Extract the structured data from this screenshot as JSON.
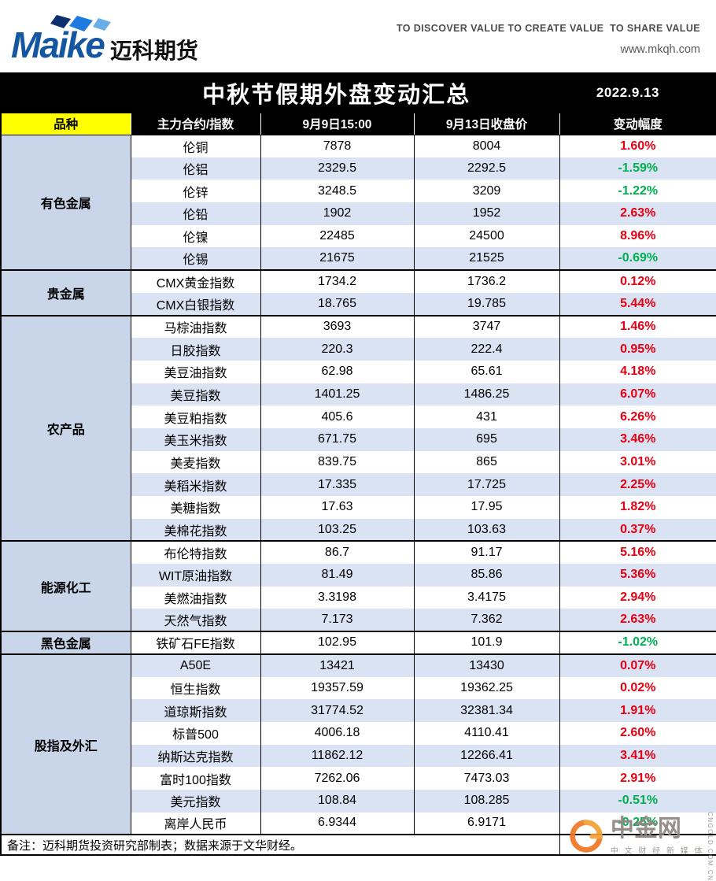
{
  "header": {
    "logo_en": "Maike",
    "logo_cn": "迈科期货",
    "tagline": "TO DISCOVER VALUE TO CREATE VALUE  TO SHARE VALUE",
    "website": "www.mkqh.com"
  },
  "title_bar": {
    "title": "中秋节假期外盘变动汇总",
    "date": "2022.9.13"
  },
  "table": {
    "headers": [
      "品种",
      "主力合约/指数",
      "9月9日15:00",
      "9月13日收盘价",
      "变动幅度"
    ],
    "groups": [
      {
        "category": "有色金属",
        "rows": [
          {
            "name": "伦铜",
            "prev": "7878",
            "close": "8004",
            "change": "1.60%",
            "dir": "up"
          },
          {
            "name": "伦铝",
            "prev": "2329.5",
            "close": "2292.5",
            "change": "-1.59%",
            "dir": "down"
          },
          {
            "name": "伦锌",
            "prev": "3248.5",
            "close": "3209",
            "change": "-1.22%",
            "dir": "down"
          },
          {
            "name": "伦铅",
            "prev": "1902",
            "close": "1952",
            "change": "2.63%",
            "dir": "up"
          },
          {
            "name": "伦镍",
            "prev": "22485",
            "close": "24500",
            "change": "8.96%",
            "dir": "up"
          },
          {
            "name": "伦锡",
            "prev": "21675",
            "close": "21525",
            "change": "-0.69%",
            "dir": "down"
          }
        ]
      },
      {
        "category": "贵金属",
        "rows": [
          {
            "name": "CMX黄金指数",
            "prev": "1734.2",
            "close": "1736.2",
            "change": "0.12%",
            "dir": "up"
          },
          {
            "name": "CMX白银指数",
            "prev": "18.765",
            "close": "19.785",
            "change": "5.44%",
            "dir": "up"
          }
        ]
      },
      {
        "category": "农产品",
        "rows": [
          {
            "name": "马棕油指数",
            "prev": "3693",
            "close": "3747",
            "change": "1.46%",
            "dir": "up"
          },
          {
            "name": "日胶指数",
            "prev": "220.3",
            "close": "222.4",
            "change": "0.95%",
            "dir": "up"
          },
          {
            "name": "美豆油指数",
            "prev": "62.98",
            "close": "65.61",
            "change": "4.18%",
            "dir": "up"
          },
          {
            "name": "美豆指数",
            "prev": "1401.25",
            "close": "1486.25",
            "change": "6.07%",
            "dir": "up"
          },
          {
            "name": "美豆粕指数",
            "prev": "405.6",
            "close": "431",
            "change": "6.26%",
            "dir": "up"
          },
          {
            "name": "美玉米指数",
            "prev": "671.75",
            "close": "695",
            "change": "3.46%",
            "dir": "up"
          },
          {
            "name": "美麦指数",
            "prev": "839.75",
            "close": "865",
            "change": "3.01%",
            "dir": "up"
          },
          {
            "name": "美稻米指数",
            "prev": "17.335",
            "close": "17.725",
            "change": "2.25%",
            "dir": "up"
          },
          {
            "name": "美糖指数",
            "prev": "17.63",
            "close": "17.95",
            "change": "1.82%",
            "dir": "up"
          },
          {
            "name": "美棉花指数",
            "prev": "103.25",
            "close": "103.63",
            "change": "0.37%",
            "dir": "up"
          }
        ]
      },
      {
        "category": "能源化工",
        "rows": [
          {
            "name": "布伦特指数",
            "prev": "86.7",
            "close": "91.17",
            "change": "5.16%",
            "dir": "up"
          },
          {
            "name": "WIT原油指数",
            "prev": "81.49",
            "close": "85.86",
            "change": "5.36%",
            "dir": "up"
          },
          {
            "name": "美燃油指数",
            "prev": "3.3198",
            "close": "3.4175",
            "change": "2.94%",
            "dir": "up"
          },
          {
            "name": "天然气指数",
            "prev": "7.173",
            "close": "7.362",
            "change": "2.63%",
            "dir": "up"
          }
        ]
      },
      {
        "category": "黑色金属",
        "rows": [
          {
            "name": "铁矿石FE指数",
            "prev": "102.95",
            "close": "101.9",
            "change": "-1.02%",
            "dir": "down"
          }
        ]
      },
      {
        "category": "股指及外汇",
        "rows": [
          {
            "name": "A50E",
            "prev": "13421",
            "close": "13430",
            "change": "0.07%",
            "dir": "up"
          },
          {
            "name": "恒生指数",
            "prev": "19357.59",
            "close": "19362.25",
            "change": "0.02%",
            "dir": "up"
          },
          {
            "name": "道琼斯指数",
            "prev": "31774.52",
            "close": "32381.34",
            "change": "1.91%",
            "dir": "up"
          },
          {
            "name": "标普500",
            "prev": "4006.18",
            "close": "4110.41",
            "change": "2.60%",
            "dir": "up"
          },
          {
            "name": "纳斯达克指数",
            "prev": "11862.12",
            "close": "12266.41",
            "change": "3.41%",
            "dir": "up"
          },
          {
            "name": "富时100指数",
            "prev": "7262.06",
            "close": "7473.03",
            "change": "2.91%",
            "dir": "up"
          },
          {
            "name": "美元指数",
            "prev": "108.84",
            "close": "108.285",
            "change": "-0.51%",
            "dir": "down"
          },
          {
            "name": "离岸人民币",
            "prev": "6.9344",
            "close": "6.9171",
            "change": "-0.25%",
            "dir": "down"
          }
        ]
      }
    ]
  },
  "footer": {
    "note": "备注：迈科期货投资研究部制表；数据来源于文华财经。"
  },
  "watermark": {
    "name": "中金网",
    "slogan": "中 文 财 经 新 媒 体",
    "domain": "CNGOLD.COM.CN"
  },
  "colors": {
    "up_red": "#e60012",
    "down_green": "#00b050",
    "category_bg": "#c9d6ea",
    "alt_row_bg": "#dae3f3",
    "header_yellow": "#ffff00",
    "title_bar_bg": "#000000",
    "brand_blue": "#1456a0",
    "watermark_orange": "#ee7623"
  }
}
